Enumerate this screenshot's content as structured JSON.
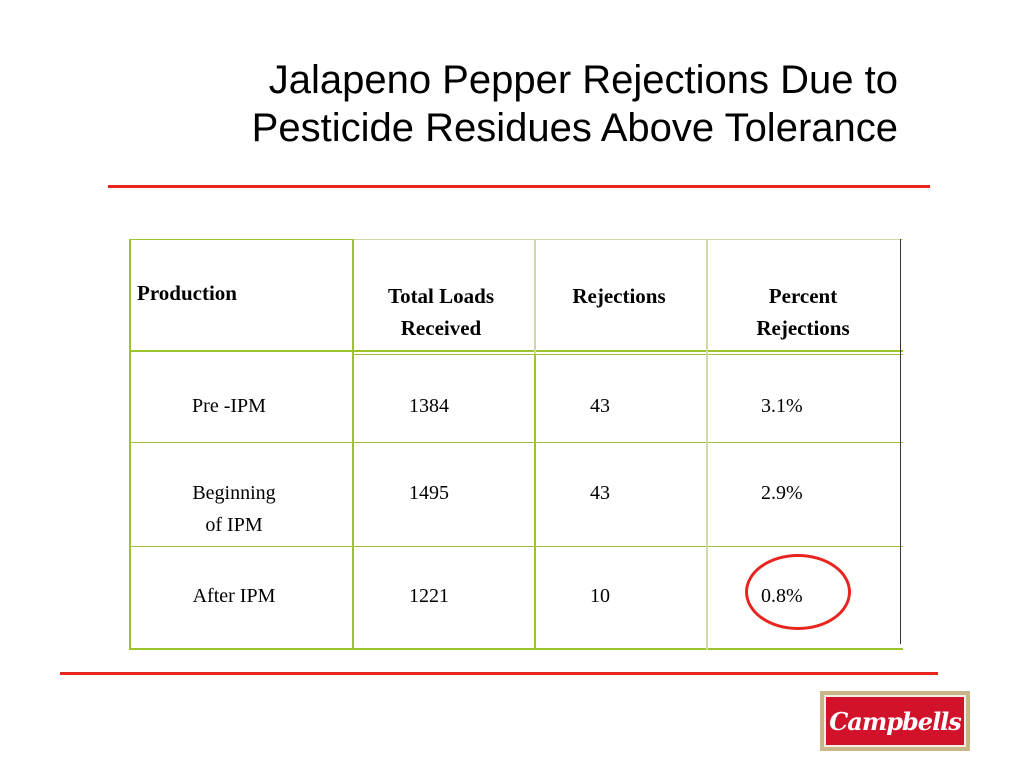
{
  "slide": {
    "title_line1": "Jalapeno Pepper Rejections Due to",
    "title_line2": "Pesticide Residues Above Tolerance"
  },
  "table": {
    "headers": {
      "production": "Production",
      "total_loads_line1": "Total Loads",
      "total_loads_line2": "Received",
      "rejections": "Rejections",
      "percent_line1": "Percent",
      "percent_line2": "Rejections"
    },
    "rows": [
      {
        "production_line1": "Pre -IPM",
        "production_line2": "",
        "total_loads": "1384",
        "rejections": "43",
        "percent": "3.1%"
      },
      {
        "production_line1": "Beginning",
        "production_line2": "of IPM",
        "total_loads": "1495",
        "rejections": "43",
        "percent": "2.9%"
      },
      {
        "production_line1": "After IPM",
        "production_line2": "",
        "total_loads": "1221",
        "rejections": "10",
        "percent": "0.8%"
      }
    ]
  },
  "logo": {
    "text": "Campbells"
  },
  "colors": {
    "accent_red": "#e8241e",
    "grid_green": "#9dc42e",
    "logo_red": "#d1122a"
  }
}
